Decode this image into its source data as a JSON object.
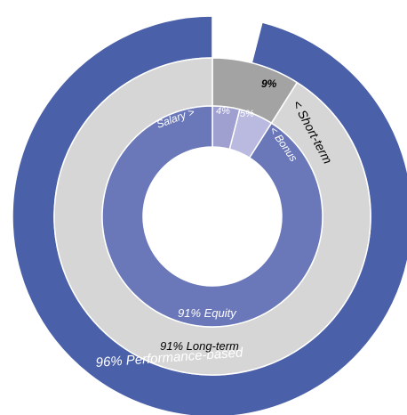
{
  "chart_data": {
    "type": "pie",
    "rings": [
      {
        "name": "outer",
        "segments": [
          {
            "label": "",
            "value": 4,
            "color": "#ffffff"
          },
          {
            "label": "96% Performance-based",
            "value": 96,
            "color": "#4a60a8"
          }
        ]
      },
      {
        "name": "middle",
        "segments": [
          {
            "label": "9%",
            "value": 9,
            "color": "#a3a3a3"
          },
          {
            "label": "91% Long-term",
            "value": 91,
            "color": "#d6d6d6"
          }
        ]
      },
      {
        "name": "inner",
        "segments": [
          {
            "label": "4%",
            "value": 4,
            "color": "#9f9fd0"
          },
          {
            "label": "5%",
            "value": 5,
            "color": "#babae0"
          },
          {
            "label": "91% Equity",
            "value": 91,
            "color": "#6a77b8"
          }
        ]
      }
    ],
    "callouts": {
      "short_term": "< Short-term",
      "bonus": "< Bonus",
      "salary": "Salary >"
    }
  }
}
